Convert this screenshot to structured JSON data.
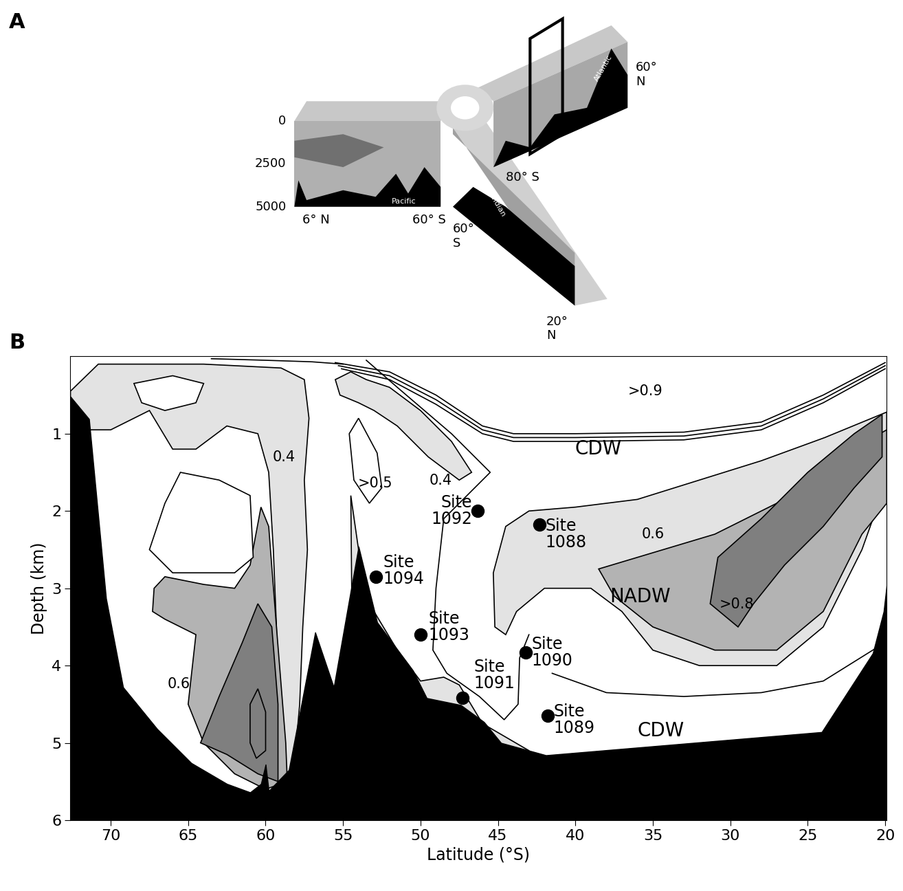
{
  "chart_data": [
    {
      "type": "schematic",
      "panel": "A",
      "depth_ticks": [
        0,
        2500,
        5000
      ],
      "labels": [
        "6° N",
        "60° S",
        "60°\nS",
        "20°\nN",
        "80° S",
        "60°\nN"
      ],
      "basins": [
        "Pacific",
        "Indian",
        "Atlantic"
      ]
    },
    {
      "type": "section",
      "panel": "B",
      "xlabel": "Latitude (°S)",
      "ylabel": "Depth (km)",
      "xlim": [
        72.6,
        19.9
      ],
      "ylim": [
        6,
        0
      ],
      "xticks": [
        70,
        65,
        60,
        55,
        50,
        45,
        40,
        35,
        30,
        25,
        20
      ],
      "yticks": [
        1,
        2,
        3,
        4,
        5,
        6
      ],
      "bathymetry": {
        "color": "#000000",
        "x": [
          72.6,
          71.4,
          70.3,
          69.2,
          67.0,
          64.8,
          62.5,
          61.0,
          60.3,
          60.0,
          59.8,
          58.5,
          56.8,
          55.6,
          54.0,
          52.8,
          50.5,
          49.6,
          47.4,
          45.9,
          44.8,
          41.9,
          24.1,
          20.8,
          20.1,
          19.9
        ],
        "y": [
          0.52,
          0.81,
          3.13,
          4.28,
          4.82,
          5.26,
          5.53,
          5.64,
          5.53,
          5.28,
          5.62,
          5.35,
          3.57,
          4.28,
          2.46,
          3.44,
          4.06,
          4.42,
          4.51,
          4.73,
          5.0,
          5.16,
          4.86,
          3.84,
          3.3,
          2.95
        ]
      },
      "regions": [
        {
          "color": "#e3e3e3",
          "x": [
            19.9,
            23.9,
            28,
            32,
            36,
            40,
            43,
            44.5,
            45.3,
            45.2,
            44.5,
            43.8,
            42,
            39,
            37,
            35,
            32,
            27,
            24,
            21.5,
            19.9
          ],
          "y": [
            0.72,
            1.05,
            1.35,
            1.6,
            1.85,
            1.95,
            2.0,
            2.2,
            2.8,
            3.5,
            3.6,
            3.3,
            3.0,
            3.0,
            3.3,
            3.8,
            4.0,
            4.0,
            3.5,
            2.5,
            1.6
          ]
        },
        {
          "color": "#b3b3b3",
          "x": [
            19.9,
            23,
            27,
            31,
            36,
            38.5,
            37.5,
            35,
            31,
            27,
            24,
            21.5,
            19.9
          ],
          "y": [
            0.95,
            1.3,
            1.9,
            2.3,
            2.6,
            2.75,
            3.1,
            3.5,
            3.8,
            3.8,
            3.3,
            2.3,
            1.9
          ]
        },
        {
          "color": "#7f7f7f",
          "x": [
            29.5,
            31.3,
            30.8,
            28,
            25,
            22,
            20.2,
            20.2,
            22,
            24,
            26.5,
            28.5
          ],
          "y": [
            3.5,
            3.2,
            2.6,
            2.1,
            1.5,
            1.0,
            0.75,
            1.3,
            1.7,
            2.2,
            2.7,
            3.2
          ]
        },
        {
          "color": "#e3e3e3",
          "x": [
            72.6,
            70.8,
            64,
            59,
            57.5,
            57.2,
            57.5,
            57.3,
            57.6,
            57.8,
            58.2,
            58.8,
            59.2,
            59.3,
            59.5,
            59.8,
            60.5,
            62.5,
            64.5,
            66,
            67.5,
            70,
            71.5,
            72.6
          ],
          "y": [
            0.45,
            0.1,
            0.1,
            0.15,
            0.3,
            0.8,
            1.6,
            2.5,
            3.5,
            4.5,
            5.4,
            5.5,
            4.5,
            3.5,
            2.5,
            1.5,
            1.0,
            0.9,
            1.2,
            1.2,
            0.7,
            0.95,
            0.95,
            0.9
          ]
        },
        {
          "color": "#ffffff",
          "x": [
            68.5,
            66,
            64,
            64.5,
            66.5,
            68
          ],
          "y": [
            0.35,
            0.25,
            0.35,
            0.6,
            0.7,
            0.6
          ]
        },
        {
          "color": "#e3e3e3",
          "x": [
            54.5,
            53.5,
            52,
            50,
            48,
            46.7,
            47.5,
            49.5,
            51.5,
            53,
            54,
            55.2,
            55.5
          ],
          "y": [
            0.2,
            0.3,
            0.4,
            0.7,
            1.1,
            1.5,
            1.6,
            1.3,
            0.9,
            0.7,
            0.6,
            0.5,
            0.3
          ]
        },
        {
          "color": "#ffffff",
          "x": [
            54.6,
            54,
            52.8,
            52.5,
            53.3,
            54.3
          ],
          "y": [
            1.0,
            0.8,
            1.25,
            1.7,
            1.9,
            1.6
          ]
        },
        {
          "color": "#e3e3e3",
          "x": [
            54.5,
            54,
            53,
            51.5,
            50,
            48.5,
            47.5,
            46,
            43,
            43,
            54.3
          ],
          "y": [
            1.8,
            2.5,
            3.3,
            3.8,
            4.2,
            4.15,
            4.25,
            4.75,
            5.1,
            6,
            6
          ]
        },
        {
          "color": "#b3b3b3",
          "x": [
            67.2,
            66.5,
            64,
            62,
            61,
            60.3,
            59.8,
            59.3,
            58.7,
            58.6,
            60,
            62,
            64,
            65,
            64.5,
            66.5,
            67.3
          ],
          "y": [
            3.0,
            2.85,
            2.95,
            3.0,
            2.7,
            1.95,
            2.2,
            3.5,
            5.0,
            5.5,
            5.6,
            5.4,
            5.0,
            4.5,
            3.6,
            3.4,
            3.3
          ]
        },
        {
          "color": "#7f7f7f",
          "x": [
            64.2,
            63,
            61.5,
            60.5,
            59.6,
            59.2,
            59.2,
            60.5,
            62.5
          ],
          "y": [
            5.0,
            4.4,
            3.7,
            3.2,
            3.5,
            4.5,
            5.5,
            5.4,
            5.15
          ]
        },
        {
          "color": "#7f7f7f",
          "x": [
            61,
            60.5,
            60,
            60,
            60.6,
            61
          ],
          "y": [
            4.5,
            4.3,
            4.6,
            5.1,
            5.2,
            5.0
          ]
        },
        {
          "color": "#ffffff",
          "x": [
            67.5,
            66,
            62,
            60.8,
            61,
            63,
            65.5,
            66.5
          ],
          "y": [
            2.5,
            2.8,
            2.8,
            2.6,
            1.8,
            1.6,
            1.5,
            1.9
          ]
        }
      ],
      "lines": [
        {
          "color": "#000000",
          "x": [
            55.5,
            52,
            49,
            46,
            44,
            40,
            33,
            28,
            24,
            20
          ],
          "y": [
            0.08,
            0.2,
            0.5,
            0.9,
            1.0,
            1.0,
            0.98,
            0.85,
            0.5,
            0.08
          ]
        },
        {
          "color": "#000000",
          "x": [
            55.3,
            52,
            49,
            46,
            44,
            40,
            33,
            28,
            24,
            20
          ],
          "y": [
            0.12,
            0.25,
            0.56,
            0.95,
            1.05,
            1.05,
            1.03,
            0.9,
            0.55,
            0.12
          ]
        },
        {
          "color": "#000000",
          "x": [
            55.1,
            52,
            49,
            46,
            44,
            40,
            33,
            28,
            24,
            20
          ],
          "y": [
            0.16,
            0.3,
            0.62,
            1.0,
            1.1,
            1.1,
            1.08,
            0.95,
            0.6,
            0.16
          ]
        },
        {
          "color": "#000000",
          "x": [
            63.5,
            60,
            57,
            55
          ],
          "y": [
            0.03,
            0.05,
            0.07,
            0.1
          ]
        },
        {
          "color": "#000000",
          "x": [
            53.5,
            51.5,
            48,
            45.5,
            46.5,
            48.5,
            49,
            49.2,
            48.3,
            46.2,
            44.6,
            43.7,
            43.6,
            43
          ],
          "y": [
            0.05,
            0.4,
            1.0,
            1.5,
            1.7,
            2.1,
            3.0,
            3.8,
            4.1,
            4.4,
            4.7,
            4.5,
            3.9,
            3.6
          ]
        },
        {
          "color": "#000000",
          "x": [
            41.5,
            38,
            33,
            28,
            24,
            20
          ],
          "y": [
            4.1,
            4.35,
            4.4,
            4.35,
            4.2,
            3.7
          ]
        }
      ],
      "contour_labels": [
        {
          "text": ">0.9",
          "x": 35.5,
          "y": 0.45
        },
        {
          "text": "0.4",
          "x": 58.8,
          "y": 1.3
        },
        {
          "text": ">0.5",
          "x": 52.9,
          "y": 1.64
        },
        {
          "text": "0.4",
          "x": 48.7,
          "y": 1.61
        },
        {
          "text": "0.6",
          "x": 35.0,
          "y": 2.3
        },
        {
          "text": ">0.8",
          "x": 29.6,
          "y": 3.21
        },
        {
          "text": "0.6",
          "x": 65.6,
          "y": 4.24
        }
      ],
      "water_masses": [
        {
          "text": "CDW",
          "x": 38.5,
          "y": 1.2
        },
        {
          "text": "NADW",
          "x": 35.8,
          "y": 3.11
        },
        {
          "text": "CDW",
          "x": 34.5,
          "y": 4.84
        }
      ],
      "sites": [
        {
          "name": "Site\n1092",
          "x": 46.3,
          "y": 2.0
        },
        {
          "name": "Site\n1088",
          "x": 42.3,
          "y": 2.18
        },
        {
          "name": "Site\n1094",
          "x": 52.9,
          "y": 2.85
        },
        {
          "name": "Site\n1093",
          "x": 50.0,
          "y": 3.6
        },
        {
          "name": "Site\n1091",
          "x": 47.3,
          "y": 4.42
        },
        {
          "name": "Site\n1090",
          "x": 43.2,
          "y": 3.83
        },
        {
          "name": "Site\n1089",
          "x": 41.8,
          "y": 4.65
        }
      ]
    }
  ]
}
